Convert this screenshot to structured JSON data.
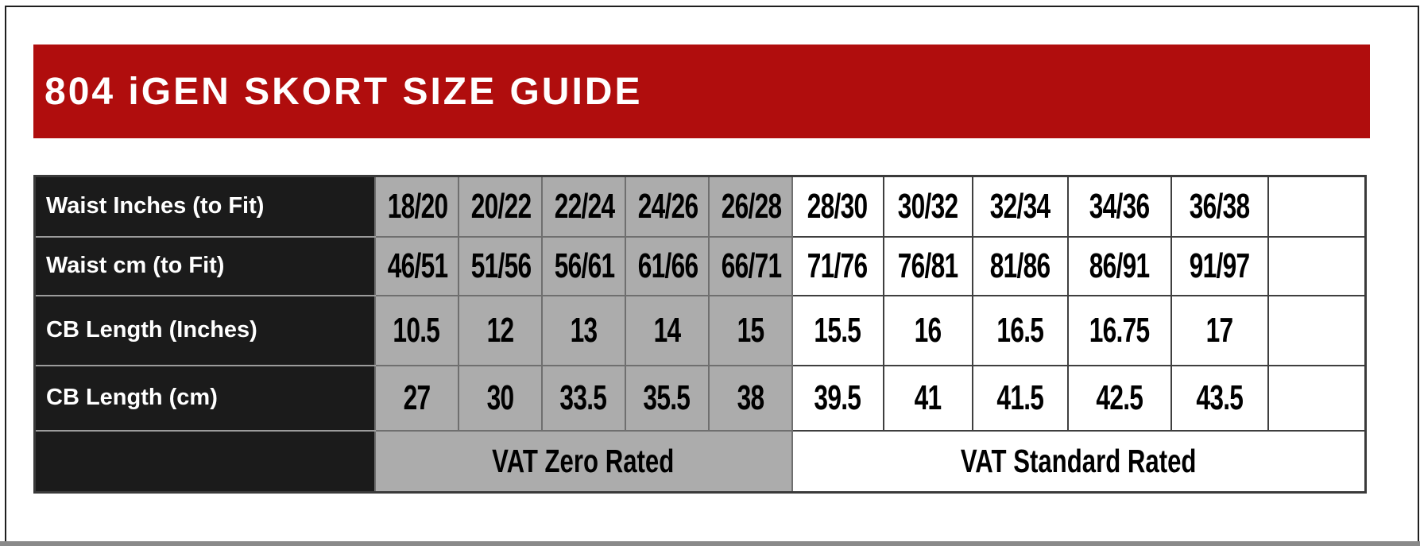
{
  "header": {
    "title": "804 iGEN SKORT SIZE GUIDE"
  },
  "table": {
    "gray_col_count": 5,
    "rows": [
      {
        "label": "Waist Inches (to Fit)",
        "values": [
          "18/20",
          "20/22",
          "22/24",
          "24/26",
          "26/28",
          "28/30",
          "30/32",
          "32/34",
          "34/36",
          "36/38",
          ""
        ]
      },
      {
        "label": "Waist cm (to Fit)",
        "values": [
          "46/51",
          "51/56",
          "56/61",
          "61/66",
          "66/71",
          "71/76",
          "76/81",
          "81/86",
          "86/91",
          "91/97",
          ""
        ]
      },
      {
        "label": "CB Length (Inches)",
        "values": [
          "10.5",
          "12",
          "13",
          "14",
          "15",
          "15.5",
          "16",
          "16.5",
          "16.75",
          "17",
          ""
        ]
      },
      {
        "label": "CB Length (cm)",
        "values": [
          "27",
          "30",
          "33.5",
          "35.5",
          "38",
          "39.5",
          "41",
          "41.5",
          "42.5",
          "43.5",
          ""
        ]
      }
    ],
    "footer": {
      "zero_rated_label": "VAT Zero Rated",
      "standard_rated_label": "VAT Standard Rated"
    }
  },
  "colors": {
    "banner_red": "#b00d0d",
    "label_cell_black": "#1b1b1b",
    "zero_rated_gray": "#acacac",
    "standard_rated_white": "#ffffff",
    "bottom_bar_gray": "#8a8a8a",
    "title_text": "#ffffff"
  }
}
